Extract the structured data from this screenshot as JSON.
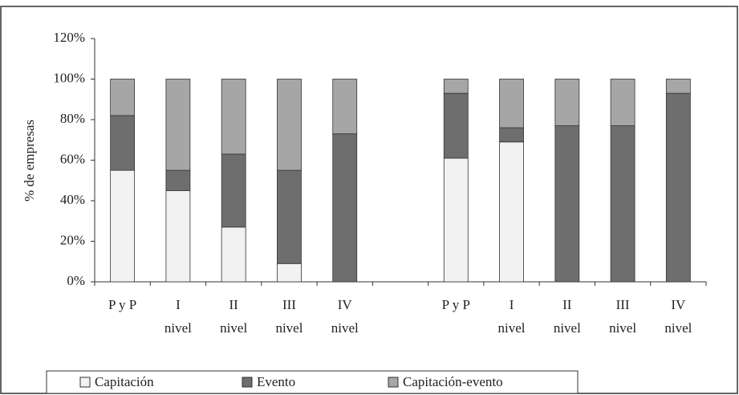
{
  "chart_data": {
    "type": "stacked_bar",
    "y_label": "% de empresas",
    "categories": [
      "P y P",
      "I\nnivel",
      "II\nnivel",
      "III\nnivel",
      "IV\nnivel",
      null,
      "P y P",
      "I\nnivel",
      "II\nnivel",
      "III\nnivel",
      "IV\nnivel"
    ],
    "series": [
      {
        "name": "Capitación",
        "color": "#f2f2f2",
        "values": [
          55,
          45,
          27,
          9,
          0,
          null,
          61,
          69,
          0,
          0,
          0
        ]
      },
      {
        "name": "Evento",
        "color": "#6e6e6e",
        "values": [
          27,
          10,
          36,
          46,
          73,
          null,
          32,
          7,
          77,
          77,
          93
        ]
      },
      {
        "name": "Capitación-evento",
        "color": "#a6a6a6",
        "values": [
          18,
          45,
          37,
          45,
          27,
          null,
          7,
          24,
          23,
          23,
          7
        ]
      }
    ],
    "ylim": [
      0,
      120
    ],
    "yticks": [
      {
        "value": 0,
        "label": "0%"
      },
      {
        "value": 20,
        "label": "20%"
      },
      {
        "value": 40,
        "label": "40%"
      },
      {
        "value": 60,
        "label": "60%"
      },
      {
        "value": 80,
        "label": "80%"
      },
      {
        "value": 100,
        "label": "100%"
      },
      {
        "value": 120,
        "label": "120%"
      }
    ],
    "legend": "bottom"
  }
}
